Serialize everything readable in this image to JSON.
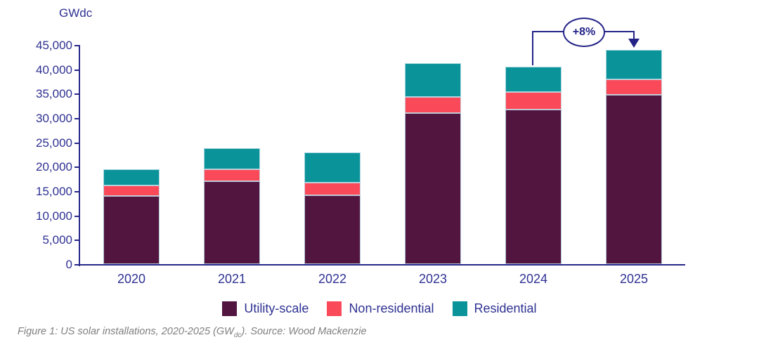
{
  "axis_title": "GWdc",
  "annotation": {
    "label": "+8%",
    "from_category": "2024",
    "to_category": "2025"
  },
  "caption": {
    "prefix": "Figure 1: US solar installations, 2020-2025 (GW",
    "sub": "dc",
    "suffix": "). Source: Wood Mackenzie"
  },
  "colors": {
    "navy_text": "#2e3192",
    "axis_line": "#28288a",
    "annotation": "#232387",
    "caption_gray": "#7f7f7f",
    "utility_scale": "#521540",
    "non_residential": "#fa4a5a",
    "residential": "#0a9399"
  },
  "chart_data": {
    "type": "bar",
    "stacked": true,
    "title": "",
    "ylabel": "GWdc",
    "xlabel": "",
    "ylim": [
      0,
      45000
    ],
    "ytick_step": 5000,
    "grid": false,
    "legend_position": "bottom",
    "categories": [
      "2020",
      "2021",
      "2022",
      "2023",
      "2024",
      "2025"
    ],
    "series": [
      {
        "name": "Utility-scale",
        "color": "#521540",
        "values": [
          14000,
          17000,
          14200,
          31000,
          31800,
          34800
        ]
      },
      {
        "name": "Non-residential",
        "color": "#fa4a5a",
        "values": [
          2200,
          2500,
          2500,
          3300,
          3500,
          3100
        ]
      },
      {
        "name": "Residential",
        "color": "#0a9399",
        "values": [
          3300,
          4300,
          6200,
          6900,
          5300,
          6100
        ]
      }
    ],
    "totals": [
      19500,
      23800,
      22900,
      41200,
      40600,
      44000
    ],
    "annotation_text": "+8%"
  }
}
